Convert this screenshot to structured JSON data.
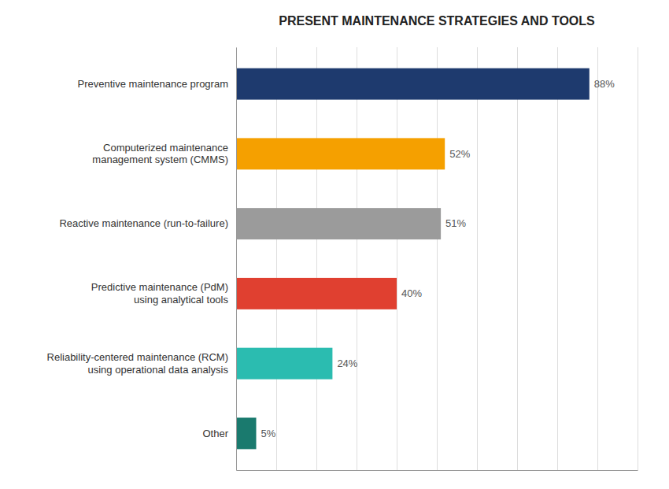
{
  "chart_data": {
    "type": "bar",
    "orientation": "horizontal",
    "title": "PRESENT MAINTENANCE STRATEGIES AND TOOLS",
    "categories": [
      "Preventive maintenance program",
      "Computerized maintenance\nmanagement system (CMMS)",
      "Reactive maintenance (run-to-failure)",
      "Predictive maintenance (PdM)\nusing analytical tools",
      "Reliability-centered maintenance (RCM)\nusing operational data analysis",
      "Other"
    ],
    "values": [
      88,
      52,
      51,
      40,
      24,
      5
    ],
    "value_labels": [
      "88%",
      "52%",
      "51%",
      "40%",
      "24%",
      "5%"
    ],
    "colors": [
      "#1e3a6e",
      "#f5a000",
      "#9b9b9b",
      "#e04030",
      "#2bbcb0",
      "#1a7a6e"
    ],
    "xlim": [
      0,
      100
    ],
    "xticks": [
      0,
      10,
      20,
      30,
      40,
      50,
      60,
      70,
      80,
      90,
      100
    ],
    "grid": true,
    "data_labels": true,
    "tick_labels": "y"
  }
}
